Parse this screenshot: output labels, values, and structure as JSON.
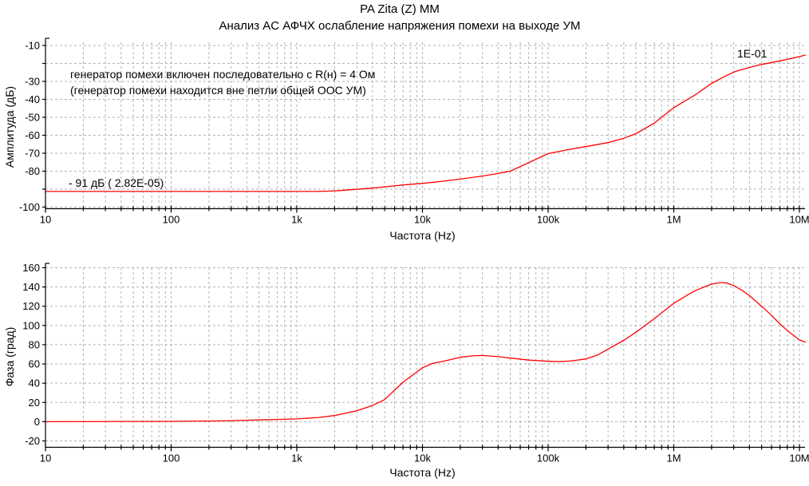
{
  "title": "PA Zita (Z) MM",
  "subtitle": "Анализ AC АФЧХ ослабление напряжения помехи на выходе УМ",
  "colors": {
    "background": "#ffffff",
    "curve": "#ff0000",
    "grid": "#b2b2b2",
    "axis": "#000000",
    "text": "#000000"
  },
  "chart_data": [
    {
      "type": "line",
      "name": "amplitude-response",
      "xlabel": "Частота (Hz)",
      "ylabel": "Амплитуда (дБ)",
      "x_scale": "log",
      "xlim": [
        10,
        10000000
      ],
      "ylim": [
        -100,
        -10
      ],
      "grid": true,
      "legend": "none",
      "x_ticks": [
        {
          "f": 10,
          "label": "10"
        },
        {
          "f": 100,
          "label": "100"
        },
        {
          "f": 1000,
          "label": "1k"
        },
        {
          "f": 10000,
          "label": "10k"
        },
        {
          "f": 100000,
          "label": "100k"
        },
        {
          "f": 1000000,
          "label": "1M"
        },
        {
          "f": 10000000,
          "label": "10M"
        }
      ],
      "y_ticks": [
        {
          "v": -10,
          "label": "-10"
        },
        {
          "v": -20,
          "label": ""
        },
        {
          "v": -30,
          "label": "-30"
        },
        {
          "v": -40,
          "label": "-40"
        },
        {
          "v": -50,
          "label": "-50"
        },
        {
          "v": -60,
          "label": "-60"
        },
        {
          "v": -70,
          "label": "-70"
        },
        {
          "v": -80,
          "label": "-80"
        },
        {
          "v": -90,
          "label": ""
        },
        {
          "v": -100,
          "label": "-100"
        }
      ],
      "annotations": {
        "note_line1": "генератор помехи включен последовательно с R(н) = 4 Ом",
        "note_line2": "(генератор помехи находится вне петли общей ООС УМ)",
        "cursor_label": "1E-01",
        "level_label": "- 91 дБ ( 2.82E-05)"
      },
      "series": [
        {
          "name": "noise-attenuation",
          "color": "#ff0000",
          "points": [
            [
              10,
              -91.3
            ],
            [
              100,
              -91.3
            ],
            [
              500,
              -91.3
            ],
            [
              1000,
              -91.3
            ],
            [
              1400,
              -91.3
            ],
            [
              1800,
              -91.1
            ],
            [
              2200,
              -90.8
            ],
            [
              3000,
              -90.1
            ],
            [
              4000,
              -89.4
            ],
            [
              5000,
              -88.7
            ],
            [
              7000,
              -87.7
            ],
            [
              10000,
              -86.8
            ],
            [
              15000,
              -85.5
            ],
            [
              20000,
              -84.4
            ],
            [
              30000,
              -82.7
            ],
            [
              40000,
              -81.3
            ],
            [
              50000,
              -80.0
            ],
            [
              70000,
              -75.3
            ],
            [
              100000,
              -70.2
            ],
            [
              150000,
              -67.8
            ],
            [
              200000,
              -66.3
            ],
            [
              300000,
              -64.1
            ],
            [
              400000,
              -61.7
            ],
            [
              500000,
              -59.1
            ],
            [
              700000,
              -53.2
            ],
            [
              1000000,
              -44.6
            ],
            [
              1500000,
              -37.3
            ],
            [
              2000000,
              -31.1
            ],
            [
              2500000,
              -27.5
            ],
            [
              3000000,
              -24.8
            ],
            [
              4000000,
              -22.2
            ],
            [
              5000000,
              -20.6
            ],
            [
              7000000,
              -18.6
            ],
            [
              10000000,
              -16.2
            ],
            [
              11200000,
              -15.3
            ]
          ]
        }
      ]
    },
    {
      "type": "line",
      "name": "phase-response",
      "xlabel": "Частота (Hz)",
      "ylabel": "Фаза (град)",
      "x_scale": "log",
      "xlim": [
        10,
        10000000
      ],
      "ylim": [
        -20,
        160
      ],
      "grid": true,
      "legend": "none",
      "x_ticks": [
        {
          "f": 10,
          "label": "10"
        },
        {
          "f": 100,
          "label": "100"
        },
        {
          "f": 1000,
          "label": "1k"
        },
        {
          "f": 10000,
          "label": "10k"
        },
        {
          "f": 100000,
          "label": "100k"
        },
        {
          "f": 1000000,
          "label": "1M"
        },
        {
          "f": 10000000,
          "label": "10M"
        }
      ],
      "y_ticks": [
        {
          "v": 160,
          "label": "160"
        },
        {
          "v": 140,
          "label": "140"
        },
        {
          "v": 120,
          "label": "120"
        },
        {
          "v": 100,
          "label": "100"
        },
        {
          "v": 80,
          "label": "80"
        },
        {
          "v": 60,
          "label": "60"
        },
        {
          "v": 40,
          "label": "40"
        },
        {
          "v": 20,
          "label": "20"
        },
        {
          "v": 0,
          "label": "0"
        },
        {
          "v": -20,
          "label": "-20"
        }
      ],
      "series": [
        {
          "name": "phase",
          "color": "#ff0000",
          "points": [
            [
              10,
              0
            ],
            [
              100,
              0.3
            ],
            [
              200,
              0.7
            ],
            [
              300,
              1.1
            ],
            [
              500,
              1.8
            ],
            [
              700,
              2.3
            ],
            [
              1000,
              2.9
            ],
            [
              1500,
              4.4
            ],
            [
              2000,
              6.4
            ],
            [
              3000,
              11.4
            ],
            [
              4000,
              16.8
            ],
            [
              5000,
              23
            ],
            [
              7000,
              41
            ],
            [
              10000,
              56
            ],
            [
              12000,
              60.5
            ],
            [
              15000,
              63
            ],
            [
              20000,
              66.9
            ],
            [
              25000,
              68.4
            ],
            [
              30000,
              68.8
            ],
            [
              40000,
              67.6
            ],
            [
              50000,
              66.1
            ],
            [
              70000,
              64
            ],
            [
              100000,
              62.8
            ],
            [
              120000,
              62.4
            ],
            [
              150000,
              63
            ],
            [
              200000,
              65.2
            ],
            [
              250000,
              69.5
            ],
            [
              300000,
              75.5
            ],
            [
              400000,
              84.5
            ],
            [
              500000,
              93
            ],
            [
              700000,
              107
            ],
            [
              1000000,
              123
            ],
            [
              1300000,
              132
            ],
            [
              1500000,
              136.5
            ],
            [
              2000000,
              143
            ],
            [
              2300000,
              144.3
            ],
            [
              2600000,
              144.3
            ],
            [
              3000000,
              141.5
            ],
            [
              3500000,
              136.5
            ],
            [
              4000000,
              131
            ],
            [
              5000000,
              120
            ],
            [
              6000000,
              110.5
            ],
            [
              7000000,
              101.5
            ],
            [
              8500000,
              92
            ],
            [
              10000000,
              85
            ],
            [
              11200000,
              82.5
            ]
          ]
        }
      ]
    }
  ]
}
